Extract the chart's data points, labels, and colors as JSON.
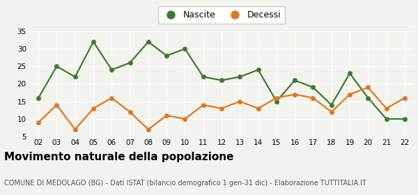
{
  "years": [
    "02",
    "03",
    "04",
    "05",
    "06",
    "07",
    "08",
    "09",
    "10",
    "11",
    "12",
    "13",
    "14",
    "15",
    "16",
    "17",
    "18",
    "19",
    "20",
    "21",
    "22"
  ],
  "nascite": [
    16,
    25,
    22,
    32,
    24,
    26,
    32,
    28,
    30,
    22,
    21,
    22,
    24,
    15,
    21,
    19,
    14,
    23,
    16,
    10,
    10
  ],
  "decessi": [
    9,
    14,
    7,
    13,
    16,
    12,
    7,
    11,
    10,
    14,
    13,
    15,
    13,
    16,
    17,
    16,
    12,
    17,
    19,
    13,
    16
  ],
  "nascite_color": "#3a7d2c",
  "decessi_color": "#e07820",
  "bg_color": "#f2f2ee",
  "ylim": [
    5,
    35
  ],
  "yticks": [
    5,
    10,
    15,
    20,
    25,
    30,
    35
  ],
  "title": "Movimento naturale della popolazione",
  "subtitle": "COMUNE DI MEDOLAGO (BG) - Dati ISTAT (bilancio demografico 1 gen-31 dic) - Elaborazione TUTTITALIA.IT",
  "legend_labels": [
    "Nascite",
    "Decessi"
  ],
  "marker_size": 5,
  "line_width": 1.6,
  "grid_color": "#ffffff",
  "tick_fontsize": 7.5,
  "title_fontsize": 11,
  "subtitle_fontsize": 7
}
